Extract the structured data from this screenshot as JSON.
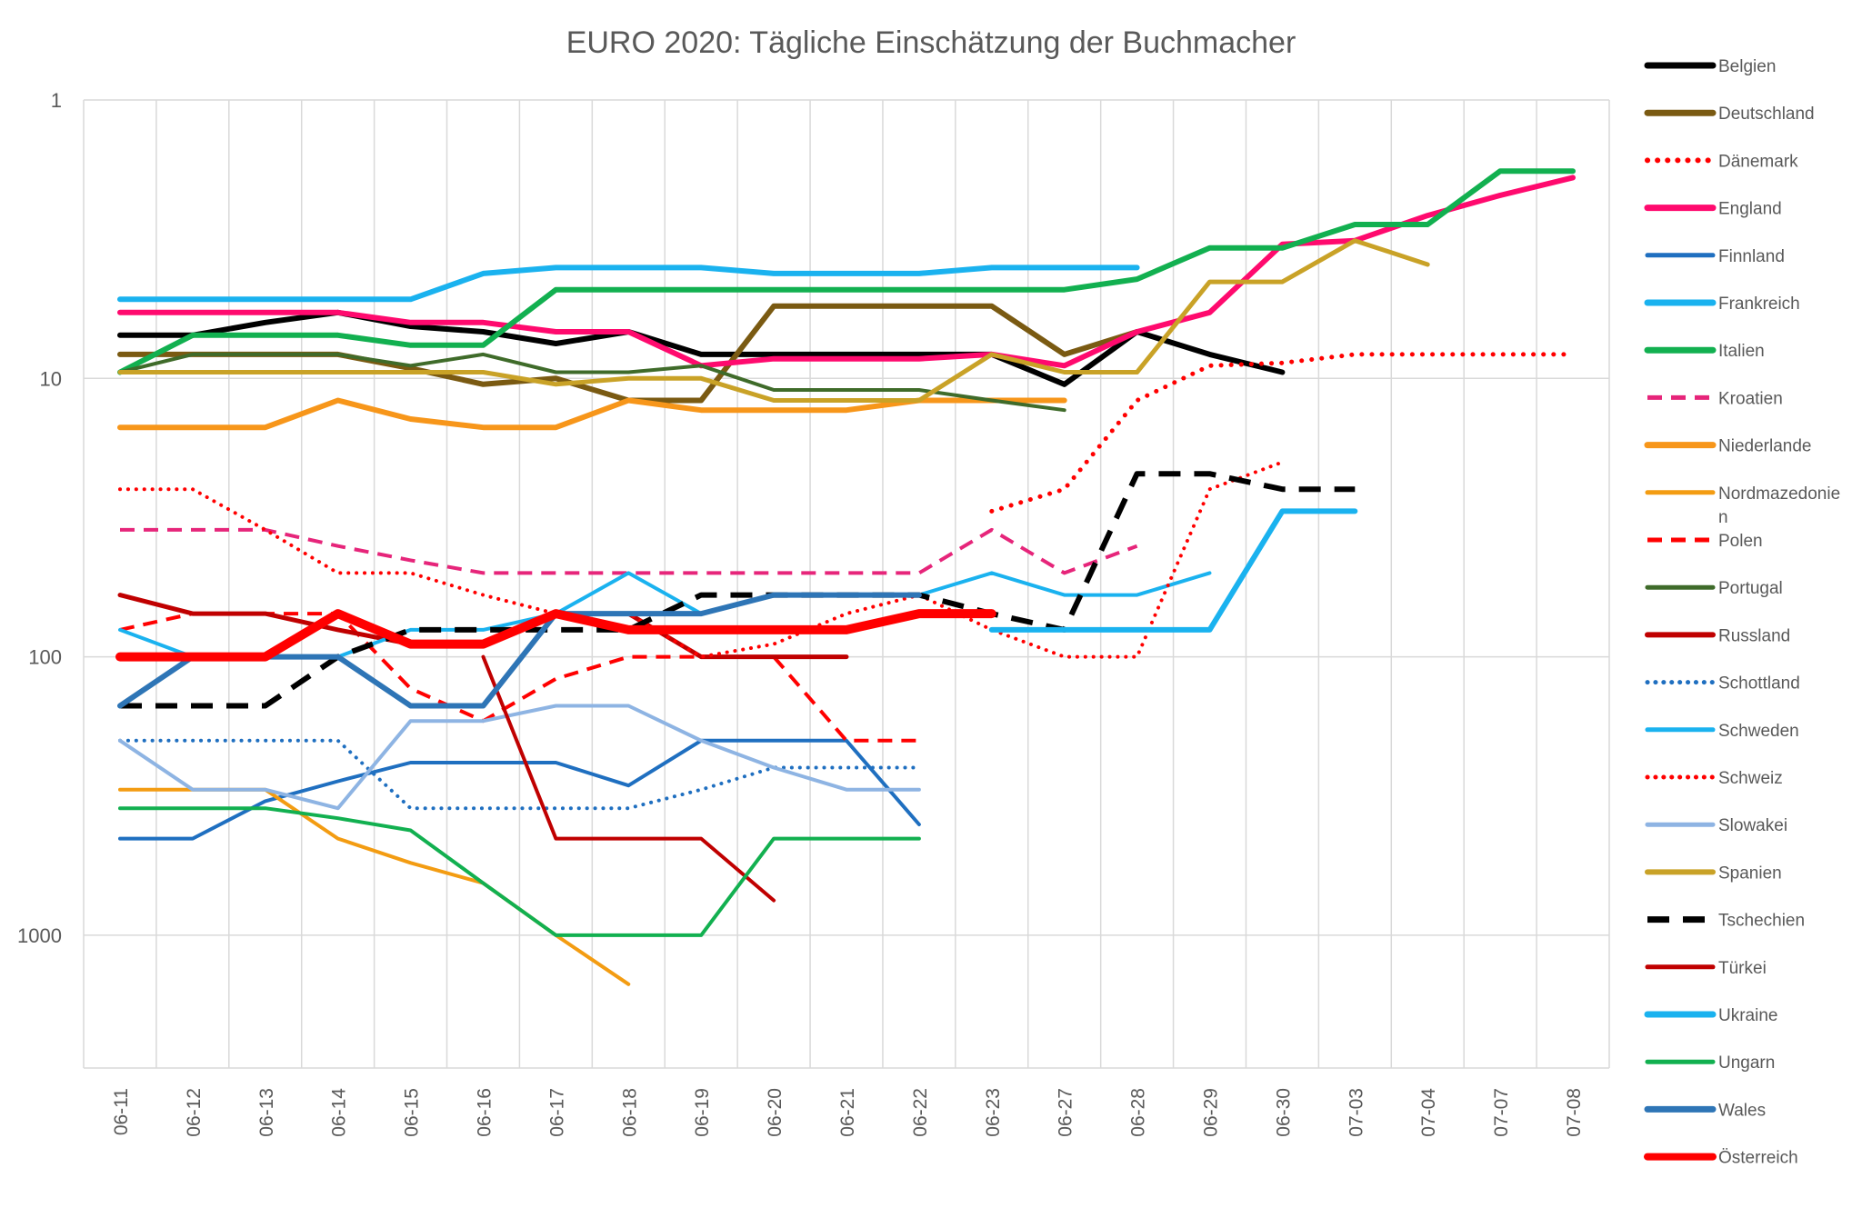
{
  "chart_data": {
    "type": "line",
    "title": "EURO 2020: Tägliche Einschätzung der Buchmacher",
    "xlabel": "",
    "ylabel": "",
    "y_scale": "log",
    "y_reversed": true,
    "ylim": [
      1,
      3000
    ],
    "y_ticks": [
      1,
      10,
      100,
      1000
    ],
    "y_tick_labels": [
      "1",
      "10",
      "100",
      "1000"
    ],
    "grid": true,
    "legend_position": "right",
    "categories": [
      "06-11",
      "06-12",
      "06-13",
      "06-14",
      "06-15",
      "06-16",
      "06-17",
      "06-18",
      "06-19",
      "06-20",
      "06-21",
      "06-22",
      "06-23",
      "06-27",
      "06-28",
      "06-29",
      "06-30",
      "07-03",
      "07-04",
      "07-07",
      "07-08"
    ],
    "series": [
      {
        "name": "Belgien",
        "color": "#000000",
        "width": 6,
        "dash": "solid",
        "values": [
          7,
          7,
          6.3,
          5.8,
          6.5,
          6.8,
          7.5,
          6.8,
          8.2,
          8.2,
          8.2,
          8.2,
          8.2,
          10.5,
          6.8,
          8.2,
          9.5,
          null,
          null,
          null,
          null
        ]
      },
      {
        "name": "Deutschland",
        "color": "#7a5a12",
        "width": 6,
        "dash": "solid",
        "values": [
          8.2,
          8.2,
          8.2,
          8.2,
          9.2,
          10.5,
          10,
          12,
          12,
          5.5,
          5.5,
          5.5,
          5.5,
          8.2,
          6.8,
          null,
          null,
          null,
          null,
          null,
          null
        ]
      },
      {
        "name": "Dänemark",
        "color": "#ff0000",
        "width": 5,
        "dash": "dot",
        "values": [
          null,
          null,
          null,
          null,
          null,
          null,
          null,
          null,
          null,
          null,
          null,
          null,
          30,
          25,
          12,
          9,
          8.8,
          8.2,
          8.2,
          8.2,
          8.2
        ]
      },
      {
        "name": "England",
        "color": "#ff0a6e",
        "width": 6,
        "dash": "solid",
        "values": [
          5.8,
          5.8,
          5.8,
          5.8,
          6.3,
          6.3,
          6.8,
          6.8,
          9,
          8.5,
          8.5,
          8.5,
          8.2,
          9,
          6.8,
          5.8,
          3.3,
          3.2,
          2.6,
          2.2,
          1.9
        ]
      },
      {
        "name": "Finnland",
        "color": "#1f6fc0",
        "width": 4,
        "dash": "solid",
        "values": [
          450,
          450,
          330,
          280,
          240,
          240,
          240,
          290,
          200,
          200,
          200,
          400,
          null,
          null,
          null,
          null,
          null,
          null,
          null,
          null,
          null
        ]
      },
      {
        "name": "Frankreich",
        "color": "#1ab2ef",
        "width": 6,
        "dash": "solid",
        "values": [
          5.2,
          5.2,
          5.2,
          5.2,
          5.2,
          4.2,
          4,
          4,
          4,
          4.2,
          4.2,
          4.2,
          4,
          4,
          4,
          null,
          null,
          null,
          null,
          null,
          null
        ]
      },
      {
        "name": "Italien",
        "color": "#12b050",
        "width": 6,
        "dash": "solid",
        "values": [
          9.5,
          7,
          7,
          7,
          7.6,
          7.6,
          4.8,
          4.8,
          4.8,
          4.8,
          4.8,
          4.8,
          4.8,
          4.8,
          4.4,
          3.4,
          3.4,
          2.8,
          2.8,
          1.8,
          1.8
        ]
      },
      {
        "name": "Kroatien",
        "color": "#e6257a",
        "width": 4,
        "dash": "dash",
        "values": [
          35,
          35,
          35,
          40,
          45,
          50,
          50,
          50,
          50,
          50,
          50,
          50,
          35,
          50,
          40,
          null,
          null,
          null,
          null,
          null,
          null
        ]
      },
      {
        "name": "Niederlande",
        "color": "#f7961a",
        "width": 6,
        "dash": "solid",
        "values": [
          15,
          15,
          15,
          12,
          14,
          15,
          15,
          12,
          13,
          13,
          13,
          12,
          12,
          12,
          null,
          null,
          null,
          null,
          null,
          null,
          null
        ]
      },
      {
        "name": "Nordmazedonien",
        "color": "#f39c12",
        "width": 4,
        "dash": "solid",
        "values": [
          300,
          300,
          300,
          450,
          550,
          650,
          1000,
          1500,
          null,
          null,
          null,
          null,
          null,
          null,
          null,
          null,
          null,
          null,
          null,
          null,
          null
        ]
      },
      {
        "name": "Polen",
        "color": "#ff0000",
        "width": 4,
        "dash": "dash",
        "values": [
          80,
          70,
          70,
          70,
          130,
          170,
          120,
          100,
          100,
          100,
          200,
          200,
          null,
          null,
          null,
          null,
          null,
          null,
          null,
          null,
          null
        ]
      },
      {
        "name": "Portugal",
        "color": "#3f6b2a",
        "width": 4,
        "dash": "solid",
        "values": [
          9.5,
          8.2,
          8.2,
          8.2,
          9,
          8.2,
          9.5,
          9.5,
          9,
          11,
          11,
          11,
          12,
          13,
          null,
          null,
          null,
          null,
          null,
          null,
          null
        ]
      },
      {
        "name": "Russland",
        "color": "#c00000",
        "width": 5,
        "dash": "solid",
        "values": [
          60,
          70,
          70,
          80,
          90,
          90,
          70,
          70,
          100,
          100,
          100,
          null,
          null,
          null,
          null,
          null,
          null,
          null,
          null,
          null,
          null
        ]
      },
      {
        "name": "Schottland",
        "color": "#1f6fc0",
        "width": 4,
        "dash": "dot",
        "values": [
          200,
          200,
          200,
          200,
          350,
          350,
          350,
          350,
          300,
          250,
          250,
          250,
          null,
          null,
          null,
          null,
          null,
          null,
          null,
          null,
          null
        ]
      },
      {
        "name": "Schweden",
        "color": "#1ab2ef",
        "width": 4,
        "dash": "solid",
        "values": [
          80,
          100,
          100,
          100,
          80,
          80,
          70,
          50,
          70,
          60,
          60,
          60,
          50,
          60,
          60,
          50,
          null,
          null,
          null,
          null,
          null
        ]
      },
      {
        "name": "Schweiz",
        "color": "#ff0000",
        "width": 4,
        "dash": "dot",
        "values": [
          25,
          25,
          35,
          50,
          50,
          60,
          70,
          70,
          100,
          90,
          70,
          60,
          80,
          100,
          100,
          25,
          20,
          null,
          null,
          null,
          null
        ]
      },
      {
        "name": "Slowakei",
        "color": "#8eb4e3",
        "width": 4,
        "dash": "solid",
        "values": [
          200,
          300,
          300,
          350,
          170,
          170,
          150,
          150,
          200,
          250,
          300,
          300,
          null,
          null,
          null,
          null,
          null,
          null,
          null,
          null,
          null
        ]
      },
      {
        "name": "Spanien",
        "color": "#c9a227",
        "width": 5,
        "dash": "solid",
        "values": [
          9.5,
          9.5,
          9.5,
          9.5,
          9.5,
          9.5,
          10.5,
          10,
          10,
          12,
          12,
          12,
          8.2,
          9.5,
          9.5,
          4.5,
          4.5,
          3.2,
          3.9,
          null,
          null
        ]
      },
      {
        "name": "Tschechien",
        "color": "#000000",
        "width": 6,
        "dash": "dash",
        "values": [
          150,
          150,
          150,
          100,
          80,
          80,
          80,
          80,
          60,
          60,
          60,
          60,
          70,
          80,
          22,
          22,
          25,
          25,
          null,
          null,
          null
        ]
      },
      {
        "name": "Türkei",
        "color": "#c00000",
        "width": 4,
        "dash": "solid",
        "values": [
          null,
          null,
          null,
          null,
          null,
          100,
          450,
          450,
          450,
          750,
          null,
          null,
          null,
          null,
          null,
          null,
          null,
          null,
          null,
          null,
          null
        ]
      },
      {
        "name": "Ukraine",
        "color": "#1ab2ef",
        "width": 6,
        "dash": "solid",
        "values": [
          null,
          null,
          null,
          null,
          null,
          null,
          null,
          null,
          null,
          null,
          null,
          null,
          80,
          80,
          80,
          80,
          30,
          30,
          null,
          null,
          null
        ]
      },
      {
        "name": "Ungarn",
        "color": "#12b050",
        "width": 4,
        "dash": "solid",
        "values": [
          350,
          350,
          350,
          380,
          420,
          650,
          1000,
          1000,
          1000,
          450,
          450,
          450,
          null,
          null,
          null,
          null,
          null,
          null,
          null,
          null,
          null
        ]
      },
      {
        "name": "Wales",
        "color": "#2e75b6",
        "width": 6,
        "dash": "solid",
        "values": [
          150,
          100,
          100,
          100,
          150,
          150,
          70,
          70,
          70,
          60,
          60,
          60,
          null,
          null,
          null,
          null,
          null,
          null,
          null,
          null,
          null
        ]
      },
      {
        "name": "Österreich",
        "color": "#ff0000",
        "width": 10,
        "dash": "solid",
        "values": [
          100,
          100,
          100,
          70,
          90,
          90,
          70,
          80,
          80,
          80,
          80,
          70,
          70,
          null,
          null,
          null,
          null,
          null,
          null,
          null,
          null
        ]
      }
    ]
  }
}
